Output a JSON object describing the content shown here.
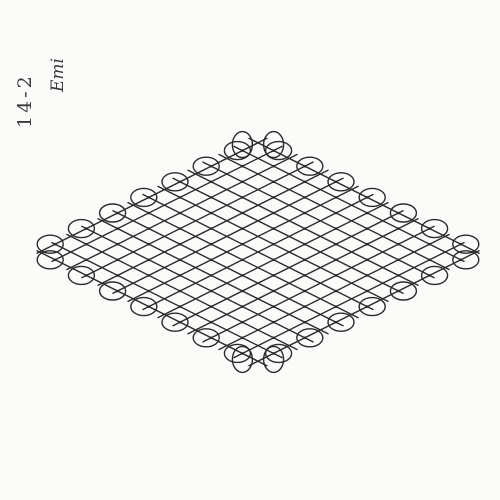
{
  "annotations": {
    "left": "14-2",
    "right": "Emi"
  },
  "drawing": {
    "subject": "kolam-pattern",
    "ink_color": "#2b2b2b",
    "paper_color": "#fbfbfa",
    "dot_grid": {
      "rows": [
        {
          "count": 2
        },
        {
          "count": 4
        },
        {
          "count": 6
        },
        {
          "count": 8
        },
        {
          "count": 10
        },
        {
          "count": 12
        },
        {
          "count": 14
        },
        {
          "count": 14
        },
        {
          "count": 12
        },
        {
          "count": 10
        },
        {
          "count": 8
        },
        {
          "count": 6
        },
        {
          "count": 4
        },
        {
          "count": 2
        }
      ]
    }
  }
}
